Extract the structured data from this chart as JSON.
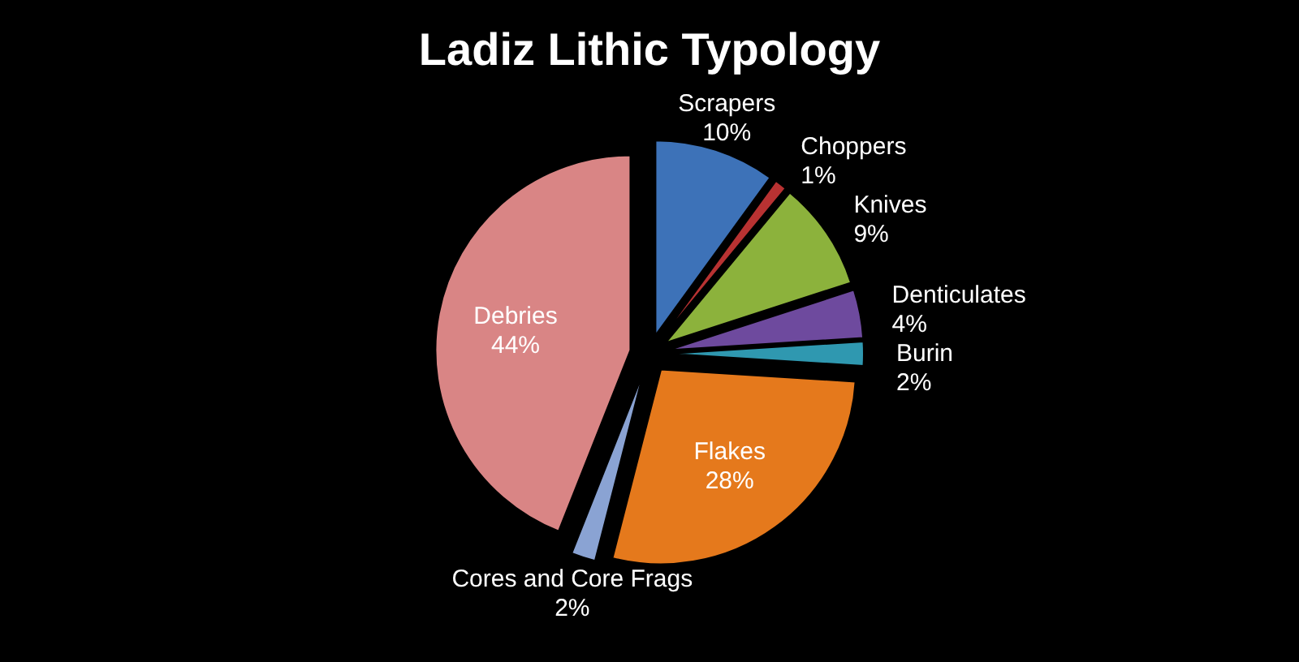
{
  "chart_data": {
    "type": "pie",
    "title": "Ladiz Lithic Typology",
    "categories": [
      "Scrapers",
      "Choppers",
      "Knives",
      "Denticulates",
      "Burin",
      "Flakes",
      "Cores and Core Frags",
      "Debries"
    ],
    "values": [
      10,
      1,
      9,
      4,
      2,
      28,
      2,
      44
    ],
    "colors": [
      "#3d72b8",
      "#b83232",
      "#8cb23c",
      "#6e4a9e",
      "#2f98b0",
      "#e5791c",
      "#8aa3d3",
      "#d98585"
    ],
    "value_labels": [
      "10%",
      "1%",
      "9%",
      "4%",
      "2%",
      "28%",
      "2%",
      "44%"
    ]
  }
}
